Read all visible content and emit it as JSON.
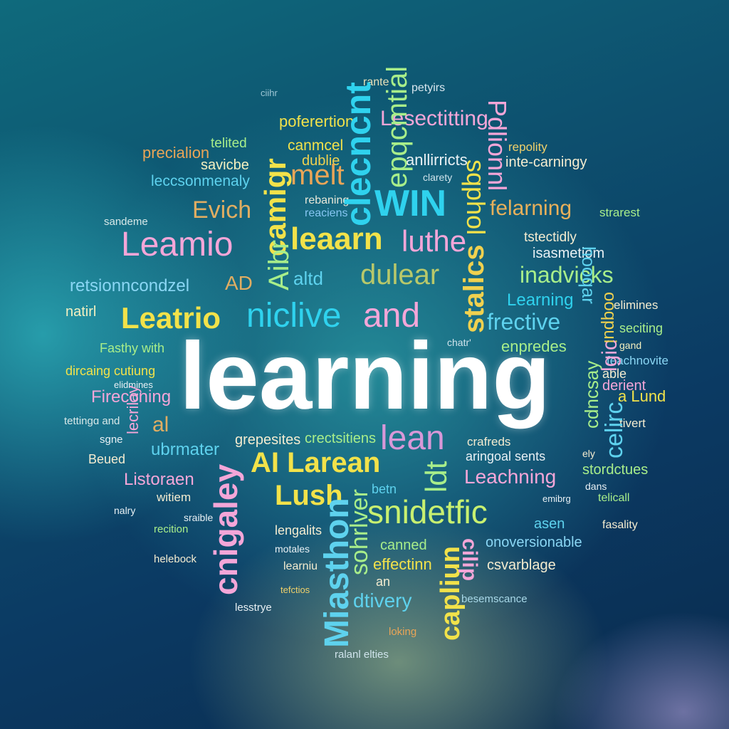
{
  "words": [
    {
      "t": "rante",
      "c": "#e8e0b8"
    },
    {
      "t": "petyirs",
      "c": "#d9e7ef"
    },
    {
      "t": "ciihr",
      "c": "#9fc7d6"
    },
    {
      "t": "poferertion",
      "c": "#f2e24a"
    },
    {
      "t": "Lesectitting",
      "c": "#f4a6d8"
    },
    {
      "t": "precialion",
      "c": "#e9a557"
    },
    {
      "t": "telited",
      "c": "#a8ee8a"
    },
    {
      "t": "canmcel",
      "c": "#f2e24a"
    },
    {
      "t": "dublie",
      "c": "#f0d14f"
    },
    {
      "t": "savicbe",
      "c": "#f4f0c0"
    },
    {
      "t": "anllirricts",
      "c": "#e8f0f4"
    },
    {
      "t": "repolity",
      "c": "#f0d06a"
    },
    {
      "t": "inte-carningy",
      "c": "#f4ecd0"
    },
    {
      "t": "leccsonmenaly",
      "c": "#5ed2ee"
    },
    {
      "t": "melt",
      "c": "#e9a557"
    },
    {
      "t": "clarety",
      "c": "#d0e4ec"
    },
    {
      "t": "Evich",
      "c": "#e0ad62"
    },
    {
      "t": "rebaning",
      "c": "#e8e8d8"
    },
    {
      "t": "reaciens",
      "c": "#86c6f2"
    },
    {
      "t": "WIN",
      "c": "#2fd2ee"
    },
    {
      "t": "felarning",
      "c": "#e8b05a"
    },
    {
      "t": "strarest",
      "c": "#a8ee8a"
    },
    {
      "t": "sandeme",
      "c": "#d8e8e8"
    },
    {
      "t": "Leamio",
      "c": "#f4a6d8"
    },
    {
      "t": "leaarn",
      "c": "#f2e24a"
    },
    {
      "t": "luthe",
      "c": "#f4a6d8"
    },
    {
      "t": "tstectidly",
      "c": "#f4ecd0"
    },
    {
      "t": "isasmetiom",
      "c": "#e8f0f4"
    },
    {
      "t": "retsionncondzel",
      "c": "#8ad6f4"
    },
    {
      "t": "AD",
      "c": "#e0ad62"
    },
    {
      "t": "altd",
      "c": "#5ed2ee"
    },
    {
      "t": "dulear",
      "c": "#b8c86a"
    },
    {
      "t": "inadvicks",
      "c": "#a8ee8a"
    },
    {
      "t": "natirl",
      "c": "#f4f0c0"
    },
    {
      "t": "Leatrio",
      "c": "#f2e24a"
    },
    {
      "t": "niclive",
      "c": "#2fd2ee"
    },
    {
      "t": "and",
      "c": "#f4a6d8"
    },
    {
      "t": "Learning",
      "c": "#2fd2ee"
    },
    {
      "t": "elimines",
      "c": "#f4ecd0"
    },
    {
      "t": "frective",
      "c": "#5ed2ee"
    },
    {
      "t": "seciting",
      "c": "#a8ee8a"
    },
    {
      "t": "Fasthy with",
      "c": "#a8ee8a"
    },
    {
      "t": "dircaing cutiung",
      "c": "#f2e24a"
    },
    {
      "t": "chatr'",
      "c": "#d0e4ec"
    },
    {
      "t": "enpredes",
      "c": "#a8ee8a"
    },
    {
      "t": "gand",
      "c": "#f4f0c0"
    },
    {
      "t": "learning",
      "c": "#ffffff"
    },
    {
      "t": "feachnovite",
      "c": "#8ad6f4"
    },
    {
      "t": "able",
      "c": "#f4ecd0"
    },
    {
      "t": "elidmines",
      "c": "#e8f0f4"
    },
    {
      "t": "derient",
      "c": "#f4a6d8"
    },
    {
      "t": "Fireconing",
      "c": "#f4a6d8"
    },
    {
      "t": "a Lund",
      "c": "#f2e24a"
    },
    {
      "t": "tettingɑ and",
      "c": "#d8e8e8"
    },
    {
      "t": "al",
      "c": "#e0ad62"
    },
    {
      "t": "tivert",
      "c": "#f4ecd0"
    },
    {
      "t": "sgne",
      "c": "#e8f0f4"
    },
    {
      "t": "grepesites",
      "c": "#f4ecd0"
    },
    {
      "t": "crectsitiens",
      "c": "#a8ee8a"
    },
    {
      "t": "lean",
      "c": "#d898d8"
    },
    {
      "t": "crafreds",
      "c": "#f4ecd0"
    },
    {
      "t": "Beued",
      "c": "#f4ecd0"
    },
    {
      "t": "ubrmater",
      "c": "#5ed2ee"
    },
    {
      "t": "aringoal sents",
      "c": "#e8f0f4"
    },
    {
      "t": "ely",
      "c": "#f4ecd0"
    },
    {
      "t": "AI Larean",
      "c": "#f2e24a"
    },
    {
      "t": "stordctues",
      "c": "#a8ee8a"
    },
    {
      "t": "Listoraen",
      "c": "#f4a6d8"
    },
    {
      "t": "Leachning",
      "c": "#f4a6d8"
    },
    {
      "t": "Lush",
      "c": "#f2e24a"
    },
    {
      "t": "betn",
      "c": "#5ed2ee"
    },
    {
      "t": "dans",
      "c": "#e8f0f4"
    },
    {
      "t": "witiem",
      "c": "#f4ecd0"
    },
    {
      "t": "emibrg",
      "c": "#e8f0f4"
    },
    {
      "t": "telicall",
      "c": "#a8ee8a"
    },
    {
      "t": "nalry",
      "c": "#e8f0f4"
    },
    {
      "t": "sraible",
      "c": "#e8f0f4"
    },
    {
      "t": "snidetfic",
      "c": "#c8f070"
    },
    {
      "t": "asen",
      "c": "#5ed2ee"
    },
    {
      "t": "fasality",
      "c": "#f4ecd0"
    },
    {
      "t": "recition",
      "c": "#a8ee8a"
    },
    {
      "t": "lengalits",
      "c": "#f4ecd0"
    },
    {
      "t": "canned",
      "c": "#a8ee8a"
    },
    {
      "t": "onoversionable",
      "c": "#8ad6f4"
    },
    {
      "t": "motales",
      "c": "#e8f0f4"
    },
    {
      "t": "helebock",
      "c": "#f4ecd0"
    },
    {
      "t": "learniu",
      "c": "#f4ecd0"
    },
    {
      "t": "effectinn",
      "c": "#f2e24a"
    },
    {
      "t": "csvarblage",
      "c": "#f4ecd0"
    },
    {
      "t": "an",
      "c": "#f4ecd0"
    },
    {
      "t": "tefctios",
      "c": "#f0d06a"
    },
    {
      "t": "lesstrye",
      "c": "#e8f0f4"
    },
    {
      "t": "dtivery",
      "c": "#5ed2ee"
    },
    {
      "t": "besemscance",
      "c": "#a8d8e8"
    },
    {
      "t": "loking",
      "c": "#e9a557"
    },
    {
      "t": "ralanl elties",
      "c": "#d0e4ec"
    },
    {
      "t": "camigr",
      "c": "#f2e24a"
    },
    {
      "t": "Aibr",
      "c": "#a8ee8a"
    },
    {
      "t": "clecncnt",
      "c": "#2fd2ee"
    },
    {
      "t": "epqcmtial",
      "c": "#a8ee8a"
    },
    {
      "t": "sqphol",
      "c": "#f2e24a"
    },
    {
      "t": "Pdlionnl",
      "c": "#f4a6d8"
    },
    {
      "t": "stalics",
      "c": "#f0d14f"
    },
    {
      "t": "cnigaley",
      "c": "#f4a6d8"
    },
    {
      "t": "Miasthon",
      "c": "#5ed2ee"
    },
    {
      "t": "sohrlver",
      "c": "#a8ee8a"
    },
    {
      "t": "capliun",
      "c": "#f2e24a"
    },
    {
      "t": "cilip",
      "c": "#f4a6d8"
    },
    {
      "t": "celirc",
      "c": "#5ed2ee"
    },
    {
      "t": "cdncsay",
      "c": "#a8ee8a"
    },
    {
      "t": "lgic",
      "c": "#f4a6d8"
    },
    {
      "t": "ooqpui",
      "c": "#f0d14f"
    },
    {
      "t": "hooqar",
      "c": "#5ed2ee"
    },
    {
      "t": "ldt",
      "c": "#a8ee8a"
    },
    {
      "t": "lecrilay",
      "c": "#f4a6d8"
    }
  ]
}
